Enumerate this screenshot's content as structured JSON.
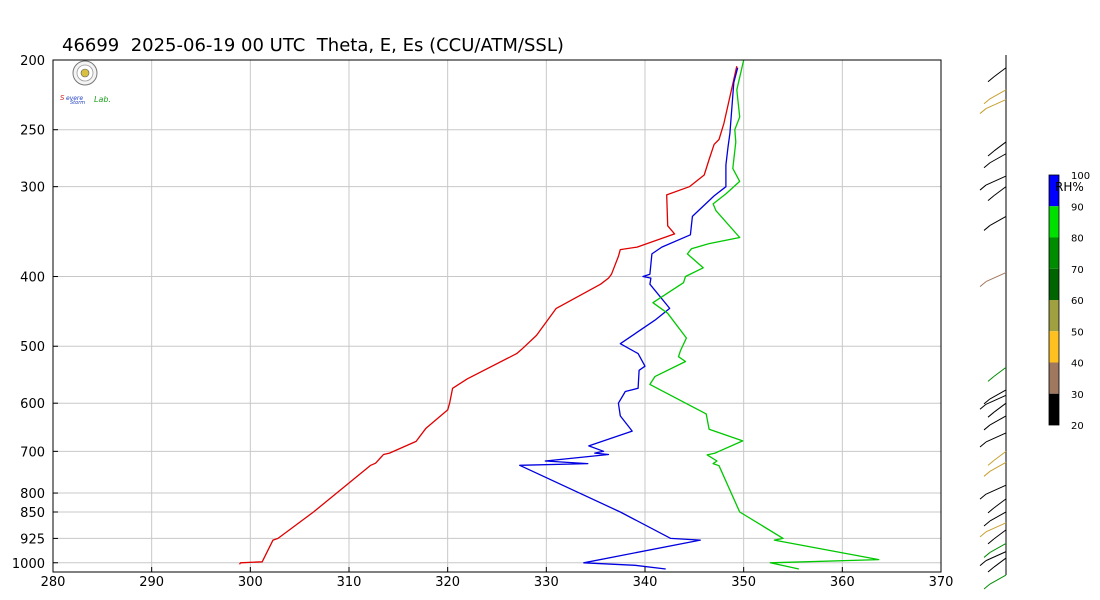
{
  "title": "46699  2025-06-19 00 UTC  Theta, E, Es (CCU/ATM/SSL)",
  "logo": {
    "text_top": "Severe",
    "text_mid": "Storm",
    "text_right": "Lab."
  },
  "chart_data": {
    "type": "line",
    "y_scale": "log-pressure",
    "x_ticks": [
      "280",
      "290",
      "300",
      "310",
      "320",
      "330",
      "340",
      "350",
      "360",
      "370"
    ],
    "y_ticks": [
      {
        "p": 200,
        "label": "200"
      },
      {
        "p": 250,
        "label": "250"
      },
      {
        "p": 300,
        "label": "300"
      },
      {
        "p": 400,
        "label": "400"
      },
      {
        "p": 500,
        "label": "500"
      },
      {
        "p": 600,
        "label": "600"
      },
      {
        "p": 700,
        "label": "700"
      },
      {
        "p": 800,
        "label": "800"
      },
      {
        "p": 850,
        "label": "850"
      },
      {
        "p": 925,
        "label": "925"
      },
      {
        "p": 1000,
        "label": "1000"
      }
    ],
    "xlim": [
      280,
      370
    ],
    "ylim": [
      200,
      1030
    ],
    "grid": true,
    "series": [
      {
        "color": "#e00000",
        "points": [
          [
            298.9,
            1005
          ],
          [
            299,
            1000
          ],
          [
            301.2,
            997
          ],
          [
            302.3,
            930
          ],
          [
            302.8,
            925
          ],
          [
            306.4,
            850
          ],
          [
            312.2,
            732
          ],
          [
            312.7,
            727
          ],
          [
            313.5,
            707
          ],
          [
            314.1,
            704
          ],
          [
            316.8,
            678
          ],
          [
            317.8,
            650
          ],
          [
            320,
            613
          ],
          [
            320.2,
            600
          ],
          [
            320.5,
            572
          ],
          [
            322,
            555
          ],
          [
            327,
            512
          ],
          [
            327.5,
            505
          ],
          [
            329,
            483
          ],
          [
            331,
            443
          ],
          [
            335.5,
            410
          ],
          [
            336.3,
            402
          ],
          [
            336.6,
            397
          ],
          [
            337.3,
            375
          ],
          [
            337.5,
            367
          ],
          [
            339.2,
            364
          ],
          [
            343,
            349
          ],
          [
            342.3,
            340
          ],
          [
            342.2,
            308
          ],
          [
            344.5,
            300
          ],
          [
            346,
            289
          ],
          [
            346.5,
            275
          ],
          [
            347,
            262
          ],
          [
            347.5,
            258
          ],
          [
            348,
            245
          ],
          [
            349.3,
            204
          ]
        ]
      },
      {
        "color": "#0000e0",
        "points": [
          [
            342.1,
            1020
          ],
          [
            339,
            1008
          ],
          [
            333.8,
            1000
          ],
          [
            345.6,
            930
          ],
          [
            342.6,
            925
          ],
          [
            337.5,
            850
          ],
          [
            327.3,
            732
          ],
          [
            334.2,
            728
          ],
          [
            329.9,
            722
          ],
          [
            336.3,
            707
          ],
          [
            334.9,
            704
          ],
          [
            335.8,
            700
          ],
          [
            334.3,
            688
          ],
          [
            338.7,
            656
          ],
          [
            337.5,
            625
          ],
          [
            337.3,
            600
          ],
          [
            338,
            578
          ],
          [
            339.3,
            572
          ],
          [
            339.4,
            540
          ],
          [
            340,
            533
          ],
          [
            339.3,
            512
          ],
          [
            337.5,
            496
          ],
          [
            341,
            460
          ],
          [
            342.5,
            443
          ],
          [
            340.5,
            410
          ],
          [
            340.6,
            402
          ],
          [
            339.8,
            400
          ],
          [
            340.5,
            397
          ],
          [
            340.7,
            372
          ],
          [
            341.7,
            364
          ],
          [
            344.6,
            350
          ],
          [
            344.8,
            330
          ],
          [
            347,
            309
          ],
          [
            348.2,
            300
          ],
          [
            348.2,
            280
          ],
          [
            348.4,
            265
          ],
          [
            348.6,
            253
          ],
          [
            349,
            215
          ],
          [
            349.4,
            205
          ]
        ]
      },
      {
        "color": "#00c800",
        "points": [
          [
            355.6,
            1020
          ],
          [
            352.7,
            1000
          ],
          [
            363.7,
            990
          ],
          [
            353.1,
            930
          ],
          [
            354,
            925
          ],
          [
            349.6,
            850
          ],
          [
            347.5,
            733
          ],
          [
            346.9,
            728
          ],
          [
            347.3,
            722
          ],
          [
            346.3,
            708
          ],
          [
            347.1,
            704
          ],
          [
            347.5,
            700
          ],
          [
            349.9,
            677
          ],
          [
            346.5,
            652
          ],
          [
            346.2,
            621
          ],
          [
            340.5,
            565
          ],
          [
            341,
            551
          ],
          [
            344.1,
            525
          ],
          [
            343.4,
            517
          ],
          [
            343.6,
            507
          ],
          [
            344.2,
            487
          ],
          [
            342.3,
            450
          ],
          [
            340.8,
            435
          ],
          [
            343.9,
            408
          ],
          [
            344.1,
            400
          ],
          [
            345.9,
            389
          ],
          [
            344.3,
            372
          ],
          [
            344.7,
            366
          ],
          [
            346.5,
            360
          ],
          [
            349.6,
            353
          ],
          [
            347.2,
            324
          ],
          [
            346.9,
            317
          ],
          [
            348.2,
            307
          ],
          [
            349.6,
            295
          ],
          [
            348.9,
            283
          ],
          [
            349.2,
            260
          ],
          [
            349.1,
            250
          ],
          [
            349.6,
            240
          ],
          [
            349.3,
            220
          ],
          [
            350,
            200
          ]
        ]
      }
    ],
    "rh_colorbar": {
      "label": "RH%",
      "ticks": [
        "20",
        "30",
        "40",
        "50",
        "60",
        "70",
        "80",
        "90",
        "100"
      ],
      "colors": [
        "#000000",
        "#ff0000",
        "#a07860",
        "#ffc020",
        "#a0a040",
        "#006400",
        "#008c00",
        "#00e000",
        "#0000ff"
      ]
    },
    "wind_barbs": [
      {
        "p": 205,
        "color": "#000000"
      },
      {
        "p": 220,
        "color": "#c8a030"
      },
      {
        "p": 227,
        "color": "#c8a030"
      },
      {
        "p": 260,
        "color": "#000000"
      },
      {
        "p": 270,
        "color": "#000000"
      },
      {
        "p": 290,
        "color": "#000000"
      },
      {
        "p": 300,
        "color": "#000000"
      },
      {
        "p": 330,
        "color": "#000000"
      },
      {
        "p": 395,
        "color": "#a07860"
      },
      {
        "p": 535,
        "color": "#008c00"
      },
      {
        "p": 575,
        "color": "#000000"
      },
      {
        "p": 585,
        "color": "#000000"
      },
      {
        "p": 600,
        "color": "#000000"
      },
      {
        "p": 625,
        "color": "#000000"
      },
      {
        "p": 660,
        "color": "#000000"
      },
      {
        "p": 700,
        "color": "#c8a030"
      },
      {
        "p": 725,
        "color": "#c8a030"
      },
      {
        "p": 780,
        "color": "#000000"
      },
      {
        "p": 815,
        "color": "#000000"
      },
      {
        "p": 850,
        "color": "#000000"
      },
      {
        "p": 880,
        "color": "#c8a030"
      },
      {
        "p": 900,
        "color": "#000000"
      },
      {
        "p": 940,
        "color": "#008c00"
      },
      {
        "p": 965,
        "color": "#000000"
      },
      {
        "p": 985,
        "color": "#000000"
      },
      {
        "p": 1040,
        "color": "#008c00"
      }
    ]
  }
}
